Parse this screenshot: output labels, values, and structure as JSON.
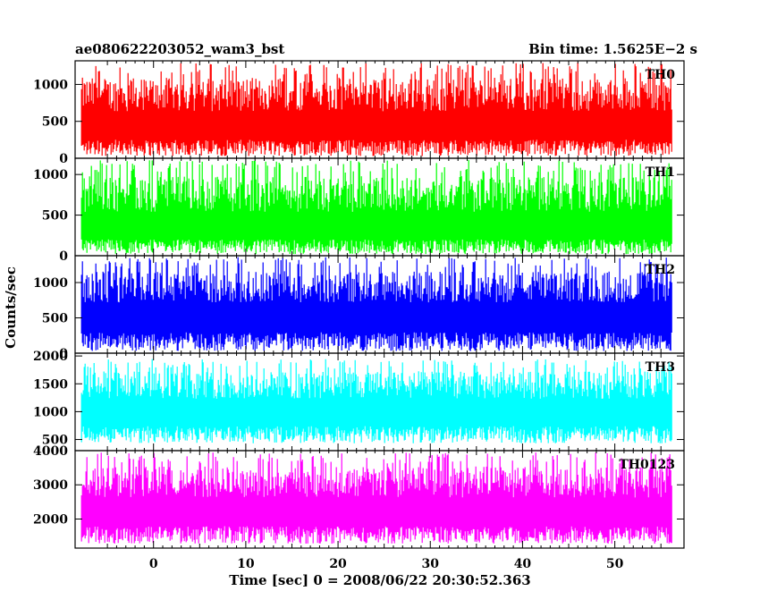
{
  "header": {
    "left_title": "ae080622203052_wam3_bst",
    "right_title": "Bin time: 1.5625E−2 s"
  },
  "chart_data": {
    "type": "line",
    "xlabel": "Time [sec] 0 = 2008/06/22 20:30:52.363",
    "ylabel": "Counts/sec",
    "xlim": [
      -8.5,
      57.5
    ],
    "x_range": [
      -7.8,
      56.2
    ],
    "x_ticks": [
      0,
      10,
      20,
      30,
      40,
      50
    ],
    "panels": [
      {
        "name": "TH0",
        "color": "#ff0000",
        "ylim": [
          0,
          1320
        ],
        "y_ticks": [
          0,
          500,
          1000
        ],
        "mean": 470,
        "low_env": 30,
        "high_env": 1300
      },
      {
        "name": "TH1",
        "color": "#00ff00",
        "ylim": [
          0,
          1200
        ],
        "y_ticks": [
          0,
          500,
          1000
        ],
        "mean": 380,
        "low_env": 20,
        "high_env": 1180
      },
      {
        "name": "TH2",
        "color": "#0000ff",
        "ylim": [
          0,
          1380
        ],
        "y_ticks": [
          0,
          500,
          1000
        ],
        "mean": 560,
        "low_env": 30,
        "high_env": 1360
      },
      {
        "name": "TH3",
        "color": "#00ffff",
        "ylim": [
          300,
          2050
        ],
        "y_ticks": [
          500,
          1000,
          1500,
          2000
        ],
        "mean": 1050,
        "low_env": 430,
        "high_env": 1950
      },
      {
        "name": "TH0123",
        "color": "#ff00ff",
        "ylim": [
          1150,
          4000
        ],
        "y_ticks": [
          2000,
          3000,
          4000
        ],
        "mean": 2300,
        "low_env": 1280,
        "high_env": 3950
      }
    ]
  }
}
